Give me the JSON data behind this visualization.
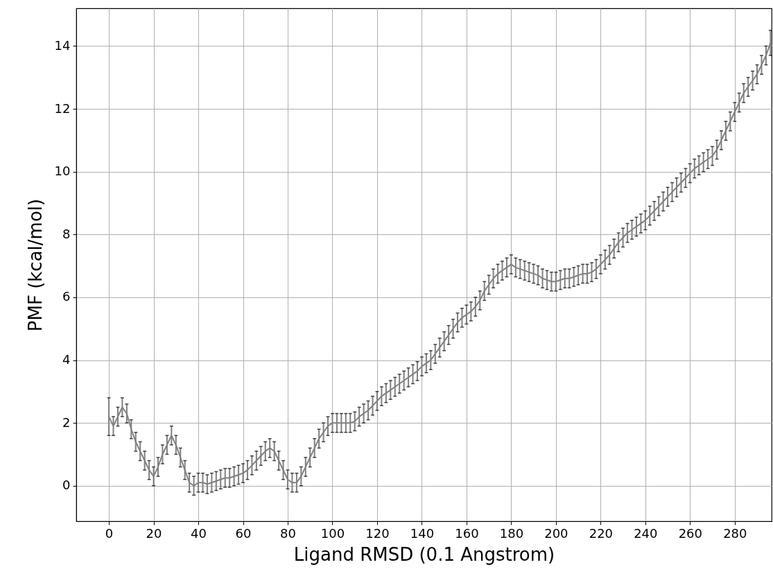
{
  "chart_data": {
    "type": "line",
    "xlabel": "Ligand RMSD (0.1 Angstrom)",
    "ylabel": "PMF (kcal/mol)",
    "x": [
      0,
      2,
      4,
      6,
      8,
      10,
      12,
      14,
      16,
      18,
      20,
      22,
      24,
      26,
      28,
      30,
      32,
      34,
      36,
      38,
      40,
      42,
      44,
      46,
      48,
      50,
      52,
      54,
      56,
      58,
      60,
      62,
      64,
      66,
      68,
      70,
      72,
      74,
      76,
      78,
      80,
      82,
      84,
      86,
      88,
      90,
      92,
      94,
      96,
      98,
      100,
      102,
      104,
      106,
      108,
      110,
      112,
      114,
      116,
      118,
      120,
      122,
      124,
      126,
      128,
      130,
      132,
      134,
      136,
      138,
      140,
      142,
      144,
      146,
      148,
      150,
      152,
      154,
      156,
      158,
      160,
      162,
      164,
      166,
      168,
      170,
      172,
      174,
      176,
      178,
      180,
      182,
      184,
      186,
      188,
      190,
      192,
      194,
      196,
      198,
      200,
      202,
      204,
      206,
      208,
      210,
      212,
      214,
      216,
      218,
      220,
      222,
      224,
      226,
      228,
      230,
      232,
      234,
      236,
      238,
      240,
      242,
      244,
      246,
      248,
      250,
      252,
      254,
      256,
      258,
      260,
      262,
      264,
      266,
      268,
      270,
      272,
      274,
      276,
      278,
      280,
      282,
      284,
      286,
      288,
      290,
      292,
      294,
      296
    ],
    "series": [
      {
        "color": "#808080",
        "values": [
          2.2,
          1.9,
          2.2,
          2.5,
          2.3,
          1.8,
          1.4,
          1.1,
          0.8,
          0.5,
          0.3,
          0.6,
          1.0,
          1.3,
          1.6,
          1.3,
          0.9,
          0.5,
          0.1,
          0.0,
          0.1,
          0.1,
          0.05,
          0.1,
          0.15,
          0.2,
          0.25,
          0.25,
          0.3,
          0.35,
          0.4,
          0.5,
          0.65,
          0.8,
          0.95,
          1.1,
          1.2,
          1.1,
          0.8,
          0.5,
          0.2,
          0.1,
          0.1,
          0.3,
          0.6,
          0.9,
          1.2,
          1.5,
          1.7,
          1.9,
          2.0,
          2.0,
          2.0,
          2.0,
          2.0,
          2.05,
          2.2,
          2.3,
          2.4,
          2.55,
          2.7,
          2.85,
          2.95,
          3.05,
          3.15,
          3.25,
          3.35,
          3.45,
          3.55,
          3.65,
          3.8,
          3.9,
          4.0,
          4.2,
          4.4,
          4.6,
          4.8,
          5.0,
          5.2,
          5.35,
          5.45,
          5.55,
          5.7,
          5.9,
          6.2,
          6.4,
          6.6,
          6.75,
          6.85,
          6.95,
          7.05,
          6.95,
          6.9,
          6.85,
          6.8,
          6.75,
          6.7,
          6.6,
          6.55,
          6.5,
          6.5,
          6.55,
          6.6,
          6.6,
          6.65,
          6.7,
          6.75,
          6.75,
          6.8,
          6.9,
          7.05,
          7.2,
          7.35,
          7.55,
          7.75,
          7.9,
          8.05,
          8.15,
          8.25,
          8.35,
          8.45,
          8.6,
          8.75,
          8.9,
          9.05,
          9.2,
          9.35,
          9.5,
          9.65,
          9.8,
          9.95,
          10.1,
          10.2,
          10.3,
          10.4,
          10.5,
          10.7,
          11.0,
          11.3,
          11.6,
          11.9,
          12.2,
          12.5,
          12.7,
          12.9,
          13.1,
          13.4,
          13.7,
          14.1
        ],
        "errors": [
          0.6,
          0.3,
          0.3,
          0.3,
          0.3,
          0.3,
          0.3,
          0.3,
          0.3,
          0.3,
          0.3,
          0.3,
          0.3,
          0.3,
          0.3,
          0.3,
          0.3,
          0.3,
          0.3,
          0.3,
          0.3,
          0.3,
          0.3,
          0.3,
          0.3,
          0.3,
          0.3,
          0.3,
          0.3,
          0.3,
          0.3,
          0.3,
          0.3,
          0.3,
          0.3,
          0.3,
          0.3,
          0.3,
          0.3,
          0.3,
          0.3,
          0.3,
          0.3,
          0.3,
          0.3,
          0.3,
          0.3,
          0.3,
          0.3,
          0.3,
          0.3,
          0.3,
          0.3,
          0.3,
          0.3,
          0.3,
          0.3,
          0.3,
          0.3,
          0.3,
          0.3,
          0.3,
          0.3,
          0.3,
          0.3,
          0.3,
          0.3,
          0.3,
          0.3,
          0.3,
          0.3,
          0.3,
          0.3,
          0.3,
          0.3,
          0.3,
          0.3,
          0.3,
          0.3,
          0.3,
          0.3,
          0.3,
          0.3,
          0.3,
          0.3,
          0.3,
          0.3,
          0.3,
          0.3,
          0.3,
          0.3,
          0.3,
          0.3,
          0.3,
          0.3,
          0.3,
          0.3,
          0.3,
          0.3,
          0.3,
          0.3,
          0.3,
          0.3,
          0.3,
          0.3,
          0.3,
          0.3,
          0.3,
          0.3,
          0.3,
          0.3,
          0.3,
          0.3,
          0.3,
          0.3,
          0.3,
          0.3,
          0.3,
          0.3,
          0.3,
          0.3,
          0.3,
          0.3,
          0.3,
          0.3,
          0.3,
          0.3,
          0.3,
          0.3,
          0.3,
          0.3,
          0.3,
          0.3,
          0.3,
          0.3,
          0.3,
          0.3,
          0.3,
          0.3,
          0.3,
          0.3,
          0.3,
          0.3,
          0.3,
          0.3,
          0.3,
          0.3,
          0.3,
          0.4
        ]
      }
    ],
    "xlim": [
      -14.6,
      296.5
    ],
    "ylim": [
      -1.13,
      15.2
    ],
    "xticks": [
      0,
      20,
      40,
      60,
      80,
      100,
      120,
      140,
      160,
      180,
      200,
      220,
      240,
      260,
      280
    ],
    "yticks": [
      0,
      2,
      4,
      6,
      8,
      10,
      12,
      14
    ],
    "grid": true,
    "marker": "none",
    "line_style": "solid"
  }
}
